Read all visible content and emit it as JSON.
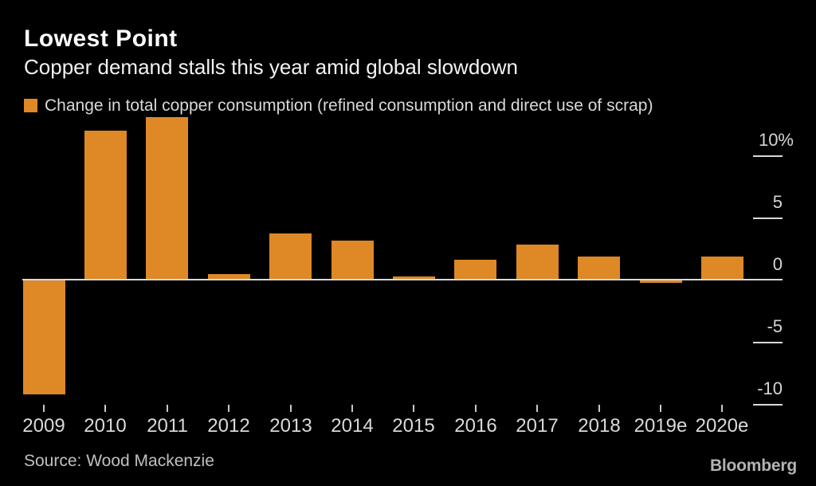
{
  "header": {
    "title": "Lowest Point",
    "subtitle": "Copper demand stalls this year amid global slowdown"
  },
  "legend": {
    "label": "Change in total copper consumption (refined consumption and direct use of scrap)"
  },
  "footer": {
    "source": "Source: Wood Mackenzie",
    "brand": "Bloomberg"
  },
  "colors": {
    "background": "#000000",
    "bar": "#DE8826",
    "axis": "#D9D9D9",
    "text": "#D9D9D9"
  },
  "chart_data": {
    "type": "bar",
    "title": "Lowest Point",
    "subtitle": "Copper demand stalls this year amid global slowdown",
    "series_label": "Change in total copper consumption (refined consumption and direct use of scrap)",
    "categories": [
      "2009",
      "2010",
      "2011",
      "2012",
      "2013",
      "2014",
      "2015",
      "2016",
      "2017",
      "2018",
      "2019e",
      "2020e"
    ],
    "values": [
      -9.2,
      12.1,
      13.2,
      0.5,
      3.8,
      3.2,
      0.3,
      1.7,
      2.9,
      1.9,
      -0.2,
      1.9
    ],
    "unit": "%",
    "ytick_values": [
      10,
      5,
      0,
      -5,
      -10
    ],
    "ytick_labels": [
      "10%",
      "5",
      "0",
      "-5",
      "-10"
    ],
    "ylim": [
      -11.7,
      14.2
    ],
    "grid": false,
    "legend_position": "top-left",
    "ylabel_side": "right",
    "source": "Source: Wood Mackenzie"
  }
}
